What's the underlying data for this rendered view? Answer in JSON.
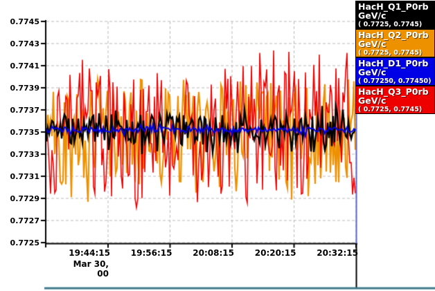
{
  "colors": {
    "background": "#ffffff",
    "grid": "#b8b8b8",
    "axis": "#000000",
    "right_frame_blue": "#5a64c8",
    "bottom_rule_teal": "#3f7a8c"
  },
  "chart_data": {
    "type": "line",
    "title": "",
    "description": "Four noisy time-series traces of beam momentum (GeV/c) overlaid on one plot",
    "grid": {
      "show": true,
      "style": "dashed"
    },
    "x_axis": {
      "tick_labels": [
        "19:44:15",
        "19:56:15",
        "20:08:15",
        "20:20:15",
        "20:32:15"
      ],
      "date_label": "Mar 30, 00",
      "tick_interval_minutes": 12
    },
    "y_axis": {
      "min": 0.7725,
      "max": 0.7745,
      "tick_step": 0.0002,
      "tick_labels": [
        "0.7745",
        "0.7743",
        "0.7741",
        "0.7739",
        "0.7737",
        "0.7735",
        "0.7733",
        "0.7731",
        "0.7729",
        "0.7727",
        "0.7725"
      ]
    },
    "seed": 42,
    "points_per_series": 224,
    "series": [
      {
        "name": "HacH_Q1_P0rb",
        "units": "GeV/c",
        "range_label": "( 0.7725, 0.7745)",
        "color": "#000000",
        "line_width": 2.4,
        "draw_order": 3,
        "baseline": 0.77352,
        "noise_band": [
          0.77339,
          0.77366
        ],
        "spike_band": [
          0.7733,
          0.77374
        ],
        "spike_prob": 0.25
      },
      {
        "name": "HacH_Q2_P0rb",
        "units": "GeV/c",
        "range_label": "( 0.7725, 0.7745)",
        "color": "#ee9100",
        "line_width": 2.2,
        "draw_order": 1,
        "baseline": 0.7735,
        "noise_band": [
          0.773,
          0.77398
        ],
        "spike_band": [
          0.77285,
          0.77404
        ],
        "spike_prob": 0.12
      },
      {
        "name": "HacH_D1_P0rb",
        "units": "GeV/c",
        "range_label": "( 0.77250, 0.77450)",
        "color": "#0000e6",
        "line_width": 2.0,
        "draw_order": 4,
        "baseline": 0.77352,
        "noise_band": [
          0.773495,
          0.773545
        ],
        "spike_band": [
          0.77346,
          0.77358
        ],
        "spike_prob": 0.1
      },
      {
        "name": "HacH_Q3_P0rb",
        "units": "GeV/c",
        "range_label": "( 0.7725, 0.7745)",
        "color": "#ee0000",
        "line_width": 1.6,
        "draw_order": 2,
        "baseline": 0.7735,
        "noise_band": [
          0.7729,
          0.7741
        ],
        "spike_band": [
          0.77266,
          0.7743
        ],
        "spike_prob": 0.15
      }
    ]
  }
}
